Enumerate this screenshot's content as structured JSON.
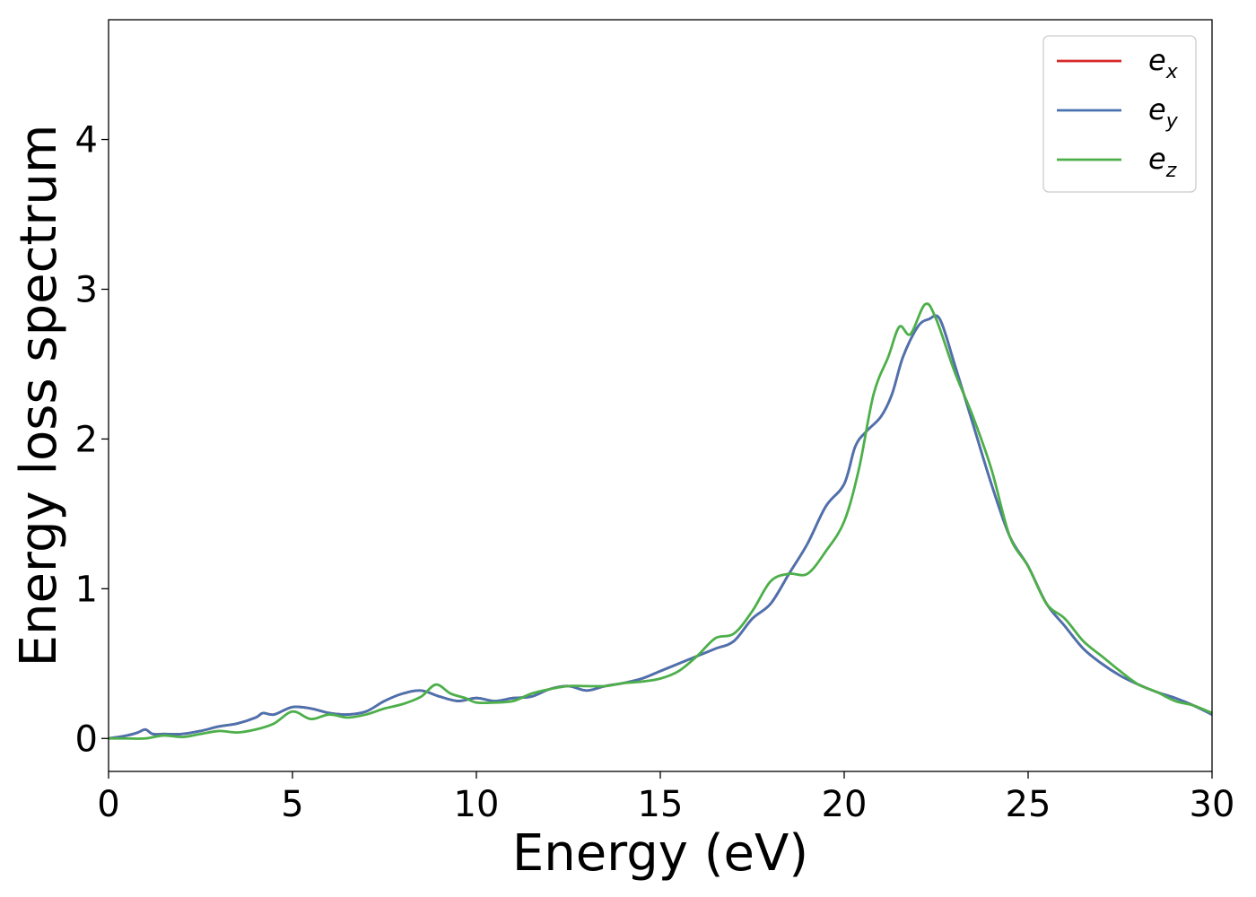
{
  "chart_data": {
    "type": "line",
    "title": "",
    "xlabel": "Energy (eV)",
    "ylabel": "Energy loss spectrum",
    "xlim": [
      0,
      30
    ],
    "ylim": [
      -0.22,
      4.8
    ],
    "xticks": [
      0,
      5,
      10,
      15,
      20,
      25,
      30
    ],
    "xtick_labels": [
      "0",
      "5",
      "10",
      "15",
      "20",
      "25",
      "30"
    ],
    "yticks": [
      0,
      1,
      2,
      3,
      4
    ],
    "ytick_labels": [
      "0",
      "1",
      "2",
      "3",
      "4"
    ],
    "grid": false,
    "legend_position": "top-right",
    "series": [
      {
        "name": "e_x",
        "legend_main": "e",
        "legend_sub": "x",
        "color": "#d62728",
        "x": [
          0,
          0.5,
          0.8,
          1.0,
          1.2,
          1.5,
          2.0,
          2.5,
          3.0,
          3.5,
          4.0,
          4.2,
          4.5,
          5.0,
          5.5,
          6.0,
          6.5,
          7.0,
          7.5,
          8.0,
          8.5,
          9.0,
          9.5,
          10.0,
          10.5,
          11.0,
          11.5,
          12.0,
          12.5,
          13.0,
          13.5,
          14.0,
          14.5,
          15.0,
          15.5,
          16.0,
          16.5,
          17.0,
          17.5,
          18.0,
          18.5,
          19.0,
          19.5,
          20.0,
          20.3,
          20.6,
          21.0,
          21.3,
          21.6,
          22.0,
          22.3,
          22.6,
          23.0,
          23.5,
          24.0,
          24.5,
          25.0,
          25.5,
          26.0,
          26.5,
          27.0,
          27.5,
          28.0,
          28.5,
          29.0,
          29.5,
          30.0
        ],
        "values": [
          0.0,
          0.02,
          0.04,
          0.06,
          0.03,
          0.03,
          0.03,
          0.05,
          0.08,
          0.1,
          0.14,
          0.17,
          0.16,
          0.21,
          0.2,
          0.17,
          0.16,
          0.18,
          0.25,
          0.3,
          0.32,
          0.28,
          0.25,
          0.27,
          0.25,
          0.27,
          0.28,
          0.33,
          0.35,
          0.32,
          0.35,
          0.37,
          0.4,
          0.45,
          0.5,
          0.55,
          0.6,
          0.65,
          0.8,
          0.9,
          1.1,
          1.3,
          1.55,
          1.7,
          1.95,
          2.05,
          2.15,
          2.3,
          2.55,
          2.75,
          2.8,
          2.8,
          2.5,
          2.1,
          1.7,
          1.35,
          1.15,
          0.9,
          0.75,
          0.6,
          0.5,
          0.42,
          0.36,
          0.31,
          0.27,
          0.22,
          0.16
        ]
      },
      {
        "name": "e_y",
        "legend_main": "e",
        "legend_sub": "y",
        "color": "#4a72b0",
        "x": [
          0,
          0.5,
          0.8,
          1.0,
          1.2,
          1.5,
          2.0,
          2.5,
          3.0,
          3.5,
          4.0,
          4.2,
          4.5,
          5.0,
          5.5,
          6.0,
          6.5,
          7.0,
          7.5,
          8.0,
          8.5,
          9.0,
          9.5,
          10.0,
          10.5,
          11.0,
          11.5,
          12.0,
          12.5,
          13.0,
          13.5,
          14.0,
          14.5,
          15.0,
          15.5,
          16.0,
          16.5,
          17.0,
          17.5,
          18.0,
          18.5,
          19.0,
          19.5,
          20.0,
          20.3,
          20.6,
          21.0,
          21.3,
          21.6,
          22.0,
          22.3,
          22.6,
          23.0,
          23.5,
          24.0,
          24.5,
          25.0,
          25.5,
          26.0,
          26.5,
          27.0,
          27.5,
          28.0,
          28.5,
          29.0,
          29.5,
          30.0
        ],
        "values": [
          0.0,
          0.02,
          0.04,
          0.06,
          0.03,
          0.03,
          0.03,
          0.05,
          0.08,
          0.1,
          0.14,
          0.17,
          0.16,
          0.21,
          0.2,
          0.17,
          0.16,
          0.18,
          0.25,
          0.3,
          0.32,
          0.28,
          0.25,
          0.27,
          0.25,
          0.27,
          0.28,
          0.33,
          0.35,
          0.32,
          0.35,
          0.37,
          0.4,
          0.45,
          0.5,
          0.55,
          0.6,
          0.65,
          0.8,
          0.9,
          1.1,
          1.3,
          1.55,
          1.7,
          1.95,
          2.05,
          2.15,
          2.3,
          2.55,
          2.75,
          2.8,
          2.8,
          2.5,
          2.1,
          1.7,
          1.35,
          1.15,
          0.9,
          0.75,
          0.6,
          0.5,
          0.42,
          0.36,
          0.31,
          0.27,
          0.22,
          0.16
        ]
      },
      {
        "name": "e_z",
        "legend_main": "e",
        "legend_sub": "z",
        "color": "#4daf4a",
        "x": [
          0,
          0.5,
          1.0,
          1.5,
          2.0,
          2.5,
          3.0,
          3.5,
          4.0,
          4.5,
          5.0,
          5.5,
          6.0,
          6.5,
          7.0,
          7.5,
          8.0,
          8.5,
          8.9,
          9.3,
          9.7,
          10.0,
          10.5,
          11.0,
          11.5,
          12.0,
          12.5,
          13.0,
          13.5,
          14.0,
          14.5,
          15.0,
          15.5,
          16.0,
          16.5,
          17.0,
          17.5,
          18.0,
          18.5,
          19.0,
          19.5,
          20.0,
          20.4,
          20.8,
          21.2,
          21.5,
          21.8,
          22.2,
          22.5,
          23.0,
          23.5,
          24.0,
          24.5,
          25.0,
          25.5,
          26.0,
          26.5,
          27.0,
          27.5,
          28.0,
          28.5,
          29.0,
          29.5,
          30.0
        ],
        "values": [
          0.0,
          0.0,
          0.0,
          0.02,
          0.01,
          0.03,
          0.05,
          0.04,
          0.06,
          0.1,
          0.18,
          0.13,
          0.16,
          0.14,
          0.16,
          0.2,
          0.23,
          0.28,
          0.36,
          0.3,
          0.27,
          0.24,
          0.24,
          0.25,
          0.3,
          0.33,
          0.35,
          0.35,
          0.35,
          0.37,
          0.38,
          0.4,
          0.45,
          0.55,
          0.67,
          0.7,
          0.85,
          1.05,
          1.1,
          1.1,
          1.25,
          1.45,
          1.8,
          2.3,
          2.55,
          2.75,
          2.7,
          2.9,
          2.8,
          2.45,
          2.15,
          1.8,
          1.35,
          1.15,
          0.9,
          0.8,
          0.65,
          0.55,
          0.45,
          0.36,
          0.31,
          0.25,
          0.22,
          0.17
        ]
      }
    ]
  }
}
